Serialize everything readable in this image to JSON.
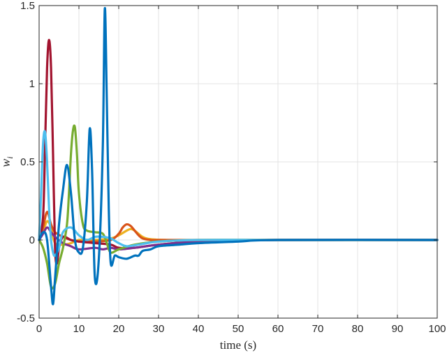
{
  "chart_data": {
    "type": "line",
    "xlabel": "time (s)",
    "ylabel": "w_i",
    "xlim": [
      0,
      100
    ],
    "ylim": [
      -0.5,
      1.5
    ],
    "xticks": [
      0,
      10,
      20,
      30,
      40,
      50,
      60,
      70,
      80,
      90,
      100
    ],
    "yticks": [
      -0.5,
      0,
      0.5,
      1,
      1.5
    ],
    "grid": true,
    "series": [
      {
        "color": "#EDB120",
        "x": [
          0,
          1,
          2,
          3,
          4,
          6,
          8,
          10,
          14,
          18,
          20,
          22,
          23,
          24,
          26,
          28,
          32,
          40,
          60,
          100
        ],
        "y": [
          0,
          0.05,
          0.12,
          0.08,
          -0.02,
          -0.03,
          -0.02,
          0.0,
          0.0,
          0.01,
          0.03,
          0.06,
          0.07,
          0.06,
          0.02,
          0.005,
          0.0,
          0.0,
          0.0,
          0.0
        ]
      },
      {
        "color": "#D95319",
        "x": [
          0,
          1,
          2,
          3,
          4,
          6,
          8,
          10,
          14,
          18,
          20,
          21,
          22,
          23,
          24,
          25,
          26,
          28,
          30,
          35,
          40,
          60,
          100
        ],
        "y": [
          0,
          0.08,
          0.18,
          0.1,
          0.05,
          0.02,
          0.0,
          -0.01,
          -0.01,
          0.0,
          0.04,
          0.08,
          0.1,
          0.09,
          0.06,
          0.03,
          0.01,
          0.0,
          0.0,
          0.0,
          0.0,
          0.0,
          0.0
        ]
      },
      {
        "color": "#A2142F",
        "x": [
          0,
          1,
          1.5,
          2,
          2.5,
          3,
          3.5,
          4,
          4.5,
          5,
          6,
          8,
          10,
          14,
          18,
          20,
          24,
          30,
          40,
          60,
          100
        ],
        "y": [
          0,
          0.15,
          0.6,
          1.1,
          1.28,
          1.1,
          0.55,
          -0.05,
          -0.15,
          -0.05,
          0.02,
          0.0,
          -0.01,
          -0.02,
          -0.03,
          -0.05,
          -0.05,
          -0.03,
          -0.01,
          0.0,
          0.0
        ]
      },
      {
        "color": "#7E2F8E",
        "x": [
          0,
          1,
          2,
          3,
          4,
          6,
          8,
          10,
          14,
          16,
          18,
          20,
          24,
          30,
          40,
          60,
          100
        ],
        "y": [
          0,
          0.04,
          0.08,
          0.05,
          0.02,
          -0.02,
          -0.04,
          -0.06,
          -0.05,
          -0.06,
          -0.05,
          -0.06,
          -0.05,
          -0.03,
          -0.01,
          0.0,
          0.0
        ]
      },
      {
        "color": "#77AC30",
        "x": [
          0,
          1,
          2,
          3,
          4,
          5,
          6,
          7,
          7.5,
          8,
          8.5,
          9,
          9.5,
          10,
          11,
          12,
          14,
          16,
          17,
          18,
          20,
          24,
          30,
          40,
          60,
          100
        ],
        "y": [
          0,
          -0.05,
          -0.15,
          -0.3,
          -0.28,
          -0.15,
          -0.05,
          0.1,
          0.3,
          0.55,
          0.7,
          0.72,
          0.55,
          0.3,
          0.1,
          0.06,
          0.05,
          0.04,
          -0.02,
          -0.08,
          -0.06,
          -0.03,
          -0.01,
          0.0,
          0.0,
          0.0
        ]
      },
      {
        "color": "#4DBEEE",
        "x": [
          0,
          0.5,
          1,
          1.5,
          2,
          2.5,
          3,
          3.5,
          4,
          5,
          6,
          8,
          10,
          12,
          14,
          16,
          18,
          20,
          22,
          25,
          30,
          40,
          60,
          100
        ],
        "y": [
          0,
          0.3,
          0.62,
          0.69,
          0.5,
          0.2,
          0.0,
          -0.08,
          -0.1,
          -0.05,
          0.05,
          0.08,
          0.03,
          0.0,
          0.02,
          0.02,
          0.01,
          -0.02,
          -0.04,
          -0.03,
          -0.01,
          0.0,
          0.0,
          0.0
        ]
      },
      {
        "color": "#0072BD",
        "x": [
          0,
          1,
          2,
          3,
          3.5,
          4,
          5,
          6,
          7,
          8,
          9,
          10,
          11,
          12,
          12.7,
          13.3,
          14,
          15,
          16,
          16.5,
          17,
          17.5,
          18,
          19,
          20,
          22,
          24,
          25,
          26,
          28,
          30,
          35,
          40,
          50,
          60,
          100
        ],
        "y": [
          0,
          0.05,
          0.0,
          -0.3,
          -0.41,
          -0.25,
          0.1,
          0.32,
          0.48,
          0.3,
          0.0,
          -0.08,
          -0.05,
          0.25,
          0.71,
          0.45,
          -0.24,
          -0.12,
          0.6,
          1.48,
          0.9,
          0.2,
          -0.15,
          -0.1,
          -0.11,
          -0.12,
          -0.1,
          -0.1,
          -0.07,
          -0.06,
          -0.04,
          -0.03,
          -0.02,
          -0.01,
          0.0,
          0.0
        ]
      }
    ]
  }
}
